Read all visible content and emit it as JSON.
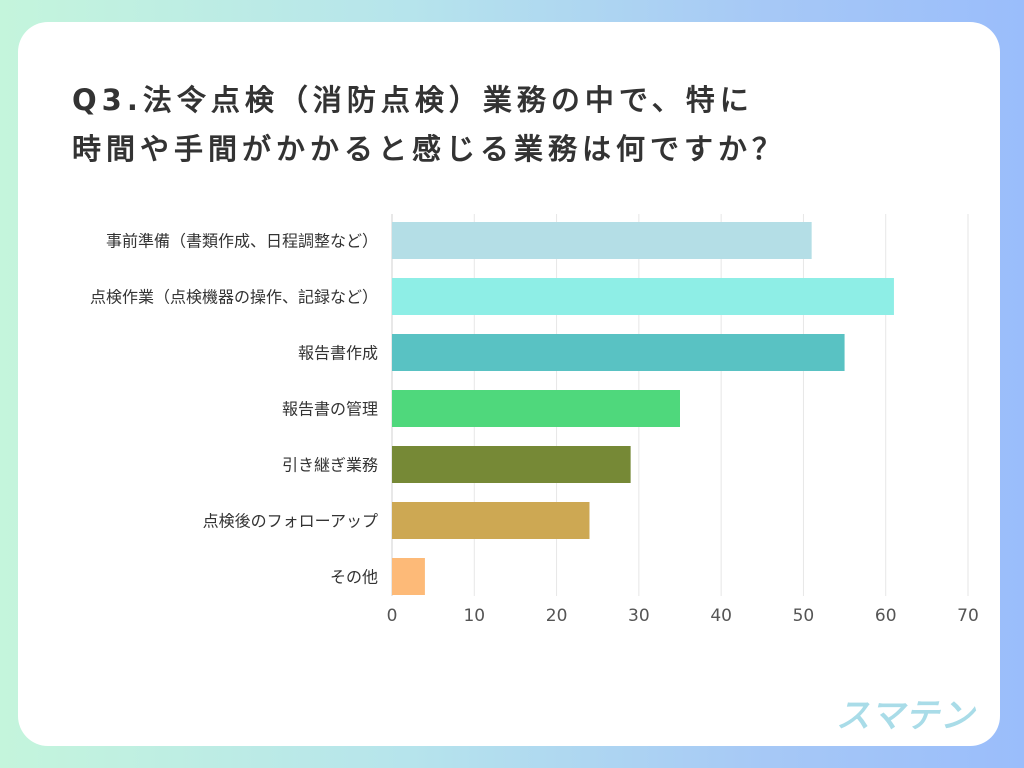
{
  "title_lines": [
    "Q3.法令点検（消防点検）業務の中で、特に",
    "時間や手間がかかると感じる業務は何ですか？"
  ],
  "logo_text": "スマテン",
  "chart_data": {
    "type": "bar",
    "orientation": "horizontal",
    "title": "Q3.法令点検（消防点検）業務の中で、特に時間や手間がかかると感じる業務は何ですか？",
    "categories": [
      "事前準備（書類作成、日程調整など）",
      "点検作業（点検機器の操作、記録など）",
      "報告書作成",
      "報告書の管理",
      "引き継ぎ業務",
      "点検後のフォローアップ",
      "その他"
    ],
    "values": [
      51,
      61,
      55,
      35,
      29,
      24,
      4
    ],
    "colors": [
      "#b4dee6",
      "#8eeee6",
      "#59c2c3",
      "#4fd87c",
      "#768936",
      "#cda853",
      "#fdba78"
    ],
    "xlim": [
      0,
      70
    ],
    "xticks": [
      0,
      10,
      20,
      30,
      40,
      50,
      60,
      70
    ],
    "grid": true,
    "xlabel": "",
    "ylabel": ""
  }
}
